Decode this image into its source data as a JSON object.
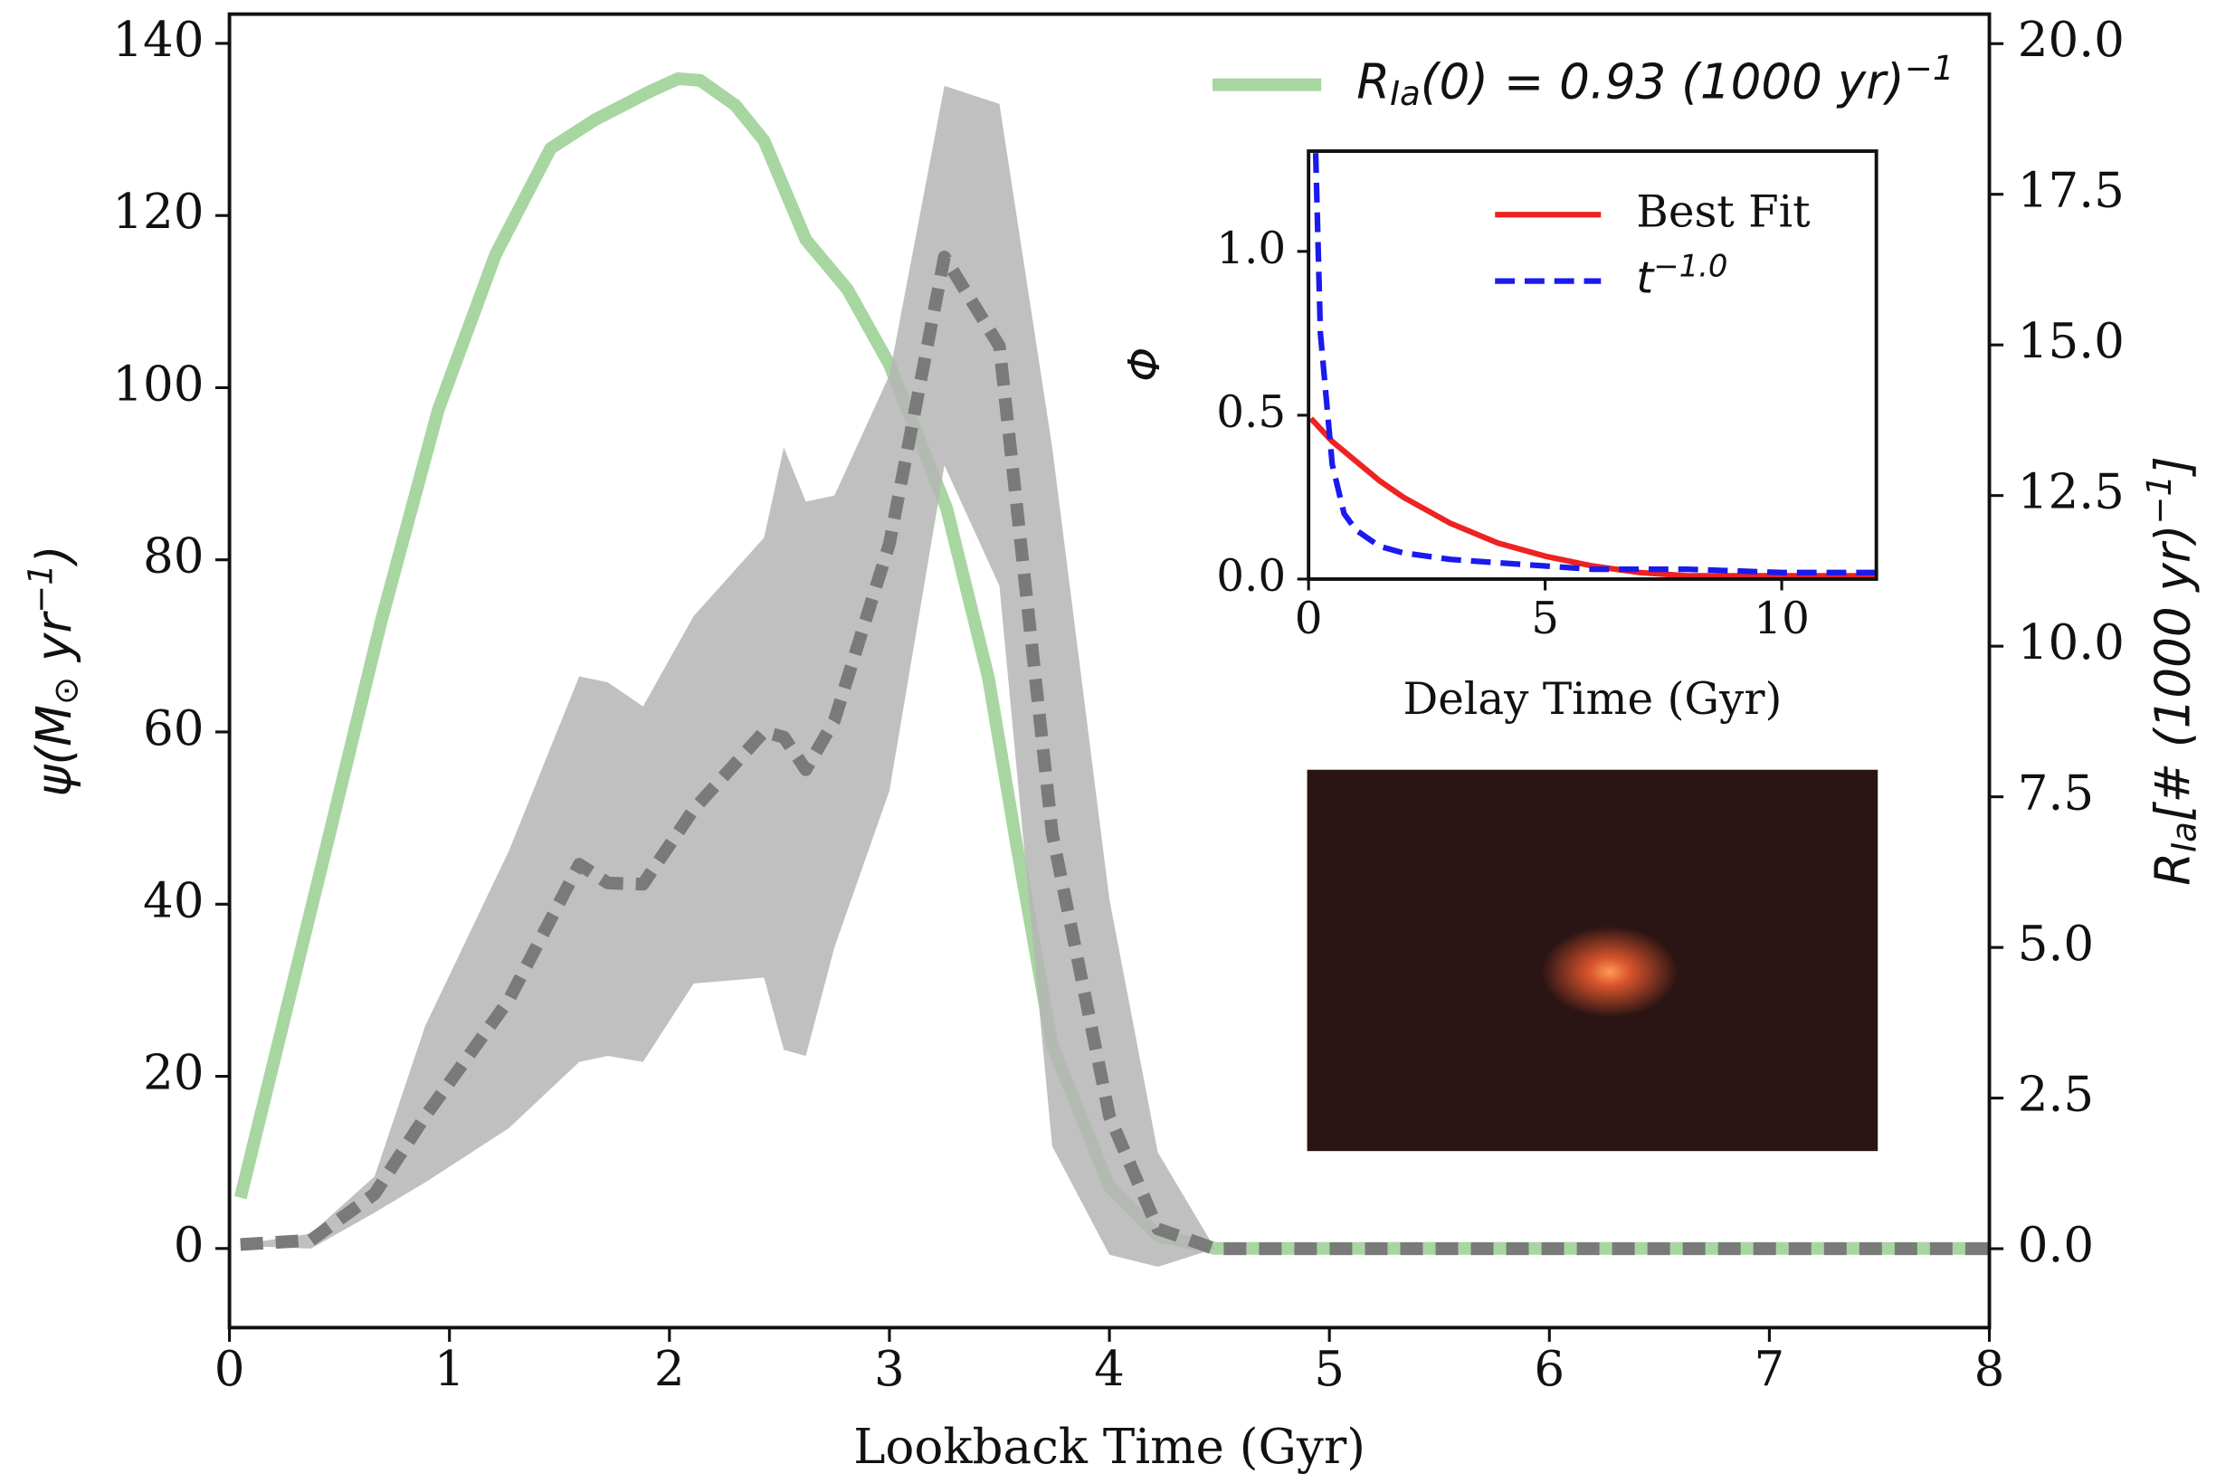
{
  "chart_data": [
    {
      "type": "line",
      "xlabel": "Lookback Time (Gyr)",
      "ylabel": "ψ(M_{⊙} yr^{−1})",
      "y2label": "R_{Ia}[# (1000 yr)^{−1}]",
      "xlim": [
        0,
        8
      ],
      "xticks": [
        0,
        1,
        2,
        3,
        4,
        5,
        6,
        7,
        8
      ],
      "ylim": [
        -9.2,
        143.4
      ],
      "yticks": [
        0,
        20,
        40,
        60,
        80,
        100,
        120,
        140
      ],
      "y2lim": [
        -1.31,
        20.49
      ],
      "y2ticks": [
        {
          "value": 0,
          "label": "0.0"
        },
        2.5,
        {
          "value": 5,
          "label": "5.0"
        },
        7.5,
        {
          "value": 10,
          "label": "10.0"
        },
        12.5,
        {
          "value": 15,
          "label": "15.0"
        },
        17.5,
        {
          "value": 20,
          "label": "20.0"
        }
      ],
      "legend": "upper right",
      "series": [
        {
          "name": "R_{Ia}(0) = 0.93 (1000 yr)^{−1}",
          "color": "#78c06f",
          "style": "solid",
          "x": [
            0.05,
            0.44,
            0.69,
            0.95,
            1.21,
            1.46,
            1.66,
            1.91,
            2.04,
            2.14,
            2.3,
            2.43,
            2.62,
            2.81,
            3.0,
            3.26,
            3.45,
            3.58,
            3.74,
            4.0,
            4.22,
            4.48,
            8
          ],
          "values": [
            5.9,
            46.6,
            72.9,
            97.5,
            115.5,
            127.8,
            131.1,
            134.4,
            135.9,
            135.7,
            132.8,
            128.7,
            117.2,
            111.4,
            102.7,
            86,
            66.3,
            46.6,
            23.6,
            7.2,
            1.5,
            0,
            0
          ]
        },
        {
          "type": "band",
          "color": "#b5b5b5",
          "axis": "y2",
          "x": [
            0.05,
            0.37,
            0.66,
            0.89,
            1.27,
            1.59,
            1.72,
            1.88,
            2.11,
            2.43,
            2.52,
            2.62,
            2.75,
            3.0,
            3.25,
            3.5,
            3.74,
            4.0,
            4.22,
            4.48
          ],
          "upper": [
            0.07,
            0.25,
            1.2,
            3.7,
            6.6,
            9.5,
            9.4,
            9.0,
            10.5,
            11.8,
            13.3,
            12.4,
            12.5,
            14.5,
            19.3,
            19.0,
            13.3,
            5.8,
            1.6,
            0
          ],
          "lower": [
            0.05,
            0,
            0.6,
            1.1,
            2.0,
            3.1,
            3.2,
            3.1,
            4.4,
            4.5,
            3.3,
            3.2,
            5.0,
            7.6,
            13.0,
            11.0,
            1.7,
            -0.1,
            -0.3,
            0
          ]
        },
        {
          "color": "#7a7a7a",
          "style": "dashed",
          "axis": "y2",
          "x": [
            0.05,
            0.37,
            0.66,
            0.89,
            1.27,
            1.59,
            1.72,
            1.88,
            2.11,
            2.43,
            2.52,
            2.62,
            2.75,
            3.0,
            3.25,
            3.5,
            3.74,
            4.0,
            4.22,
            4.48,
            8
          ],
          "values": [
            0.07,
            0.14,
            0.91,
            2.2,
            4.13,
            6.38,
            6.07,
            6.05,
            7.29,
            8.58,
            8.49,
            7.95,
            8.77,
            11.7,
            16.46,
            14.98,
            6.89,
            2.2,
            0.33,
            0,
            0
          ]
        }
      ]
    },
    {
      "type": "line",
      "xlabel": "Delay Time (Gyr)",
      "ylabel": "Φ",
      "xlim": [
        0,
        12
      ],
      "xticks": [
        0,
        5,
        10
      ],
      "ylim": [
        0,
        1.306
      ],
      "yticks": [
        {
          "value": 0,
          "label": "0.0"
        },
        0.5,
        {
          "value": 1,
          "label": "1.0"
        }
      ],
      "legend": "upper right",
      "series": [
        {
          "name": "Best Fit",
          "color": "#ee2222",
          "style": "solid",
          "x": [
            0.05,
            0.5,
            1,
            1.5,
            2,
            3,
            4,
            5,
            6,
            7,
            8,
            10,
            12
          ],
          "values": [
            0.49,
            0.42,
            0.36,
            0.3,
            0.25,
            0.17,
            0.11,
            0.07,
            0.04,
            0.02,
            0.01,
            0.01,
            0.01
          ]
        },
        {
          "name": "t^{−1.0}",
          "color": "#1a1aee",
          "style": "dashed",
          "x": [
            0.15,
            0.25,
            0.5,
            0.75,
            1,
            1.5,
            2,
            3,
            4,
            5,
            6,
            8,
            10,
            12
          ],
          "values": [
            1.3,
            0.75,
            0.35,
            0.2,
            0.15,
            0.1,
            0.08,
            0.06,
            0.05,
            0.04,
            0.03,
            0.03,
            0.02,
            0.02
          ]
        }
      ]
    }
  ]
}
